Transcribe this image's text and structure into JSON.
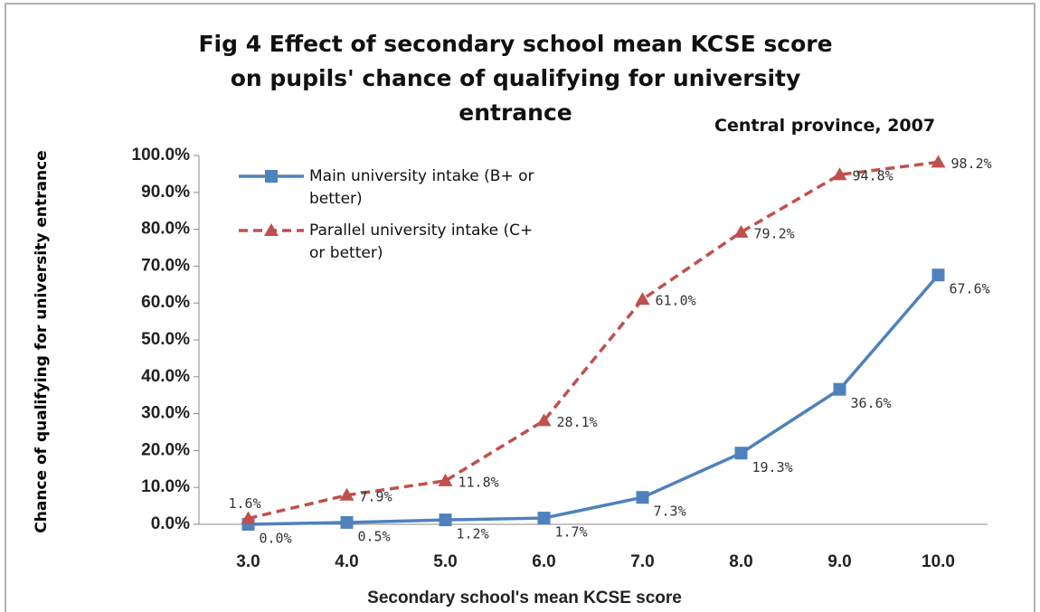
{
  "chart_data": {
    "type": "line",
    "title": "Fig 4   Effect of secondary school mean KCSE score on pupils' chance of qualifying for university entrance",
    "subtitle": "Central province, 2007",
    "x_label": "Secondary school's mean KCSE score",
    "y_label": "Chance of qualifying for university entrance",
    "categories": [
      "3.0",
      "4.0",
      "5.0",
      "6.0",
      "7.0",
      "8.0",
      "9.0",
      "10.0"
    ],
    "series": [
      {
        "name": "Main university intake (B+ or better)",
        "color": "#4f81bd",
        "marker": "square",
        "dash": false,
        "values": [
          0.0,
          0.5,
          1.2,
          1.7,
          7.3,
          19.3,
          36.6,
          67.6
        ],
        "value_labels": [
          "0.0%",
          "0.5%",
          "1.2%",
          "1.7%",
          "7.3%",
          "19.3%",
          "36.6%",
          "67.6%"
        ]
      },
      {
        "name": "Parallel university intake (C+ or better)",
        "color": "#c0504d",
        "marker": "triangle",
        "dash": true,
        "values": [
          1.6,
          7.9,
          11.8,
          28.1,
          61.0,
          79.2,
          94.8,
          98.2
        ],
        "value_labels": [
          "1.6%",
          "7.9%",
          "11.8%",
          "28.1%",
          "61.0%",
          "79.2%",
          "94.8%",
          "98.2%"
        ]
      }
    ],
    "ylim": [
      0,
      100
    ],
    "yticks": [
      {
        "value": 0,
        "label": "0.0%"
      },
      {
        "value": 10,
        "label": "10.0%"
      },
      {
        "value": 20,
        "label": "20.0%"
      },
      {
        "value": 30,
        "label": "30.0%"
      },
      {
        "value": 40,
        "label": "40.0%"
      },
      {
        "value": 50,
        "label": "50.0%"
      },
      {
        "value": 60,
        "label": "60.0%"
      },
      {
        "value": 70,
        "label": "70.0%"
      },
      {
        "value": 80,
        "label": "80.0%"
      },
      {
        "value": 90,
        "label": "90.0%"
      },
      {
        "value": 100,
        "label": "100.0%"
      }
    ],
    "legend": "top-left"
  }
}
